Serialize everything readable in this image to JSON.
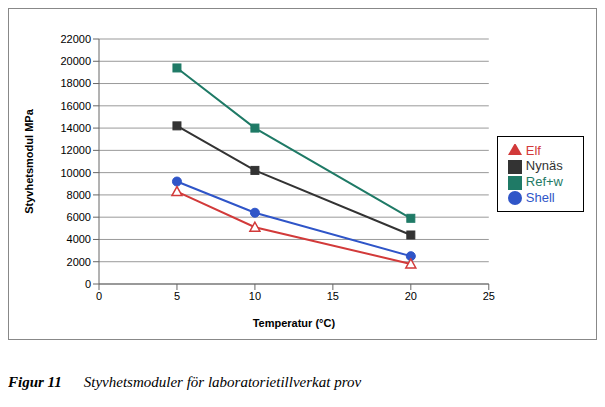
{
  "chart_data": {
    "type": "line",
    "x_label": "Temperatur (°C)",
    "y_label": "Styvhetsmodul MPa",
    "annotations": [
      "Figur 11",
      "Styvhetsmoduler för laboratorietillverkat prov"
    ],
    "x": [
      5,
      10,
      20
    ],
    "series": [
      {
        "name": "Ref+w",
        "color": "#1f7a66",
        "marker": "square",
        "values": [
          19400,
          14000,
          5900
        ]
      },
      {
        "name": "Nynäs",
        "color": "#333333",
        "marker": "square",
        "values": [
          14200,
          10200,
          4400
        ]
      },
      {
        "name": "Shell",
        "color": "#2f55c8",
        "marker": "circle",
        "values": [
          9200,
          6400,
          2500
        ]
      },
      {
        "name": "Elf",
        "color": "#d23a3a",
        "marker": "triangle",
        "values": [
          8300,
          5100,
          1800
        ]
      }
    ],
    "xlim": [
      0,
      25
    ],
    "xticks": [
      0,
      5,
      10,
      15,
      20,
      25
    ],
    "ylim": [
      0,
      22000
    ],
    "yticks": [
      0,
      2000,
      4000,
      6000,
      8000,
      10000,
      12000,
      14000,
      16000,
      18000,
      20000,
      22000
    ],
    "grid": true,
    "legend": "right"
  }
}
